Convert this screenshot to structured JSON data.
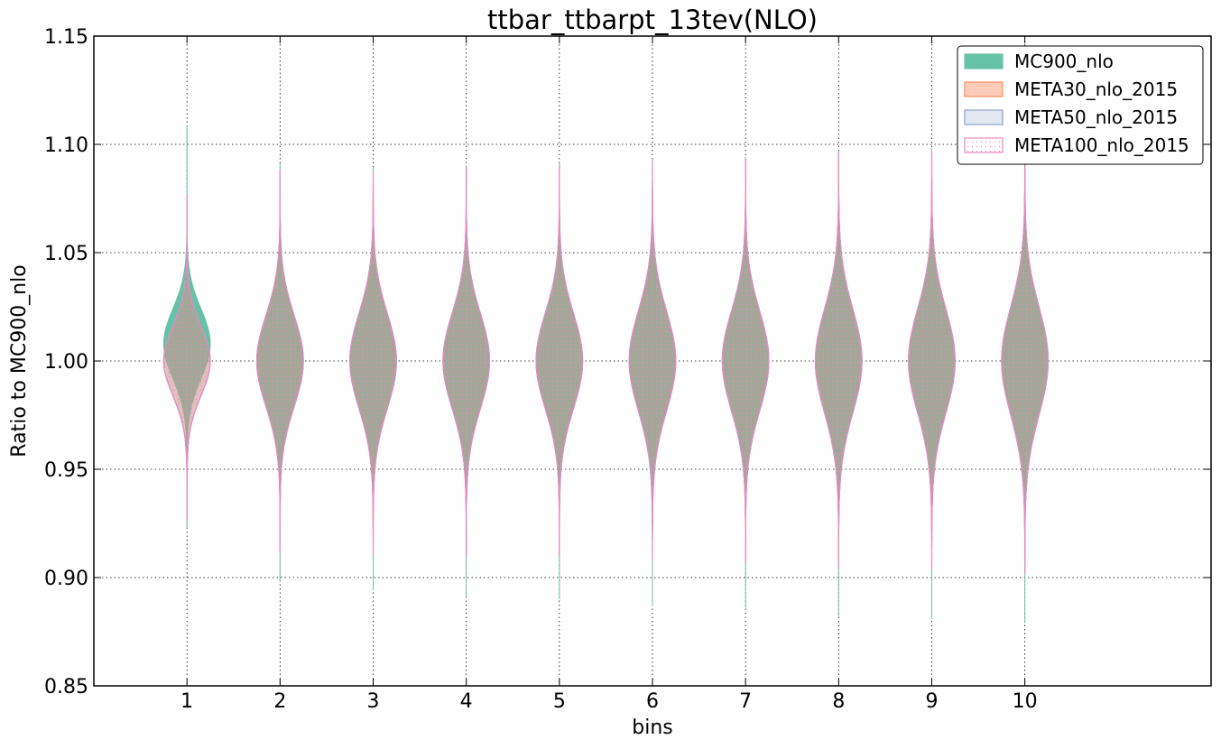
{
  "chart_data": {
    "type": "violin",
    "title": "ttbar_ttbarpt_13tev(NLO)",
    "xlabel": "bins",
    "ylabel": "Ratio to MC900_nlo",
    "xlim": [
      0,
      12
    ],
    "ylim": [
      0.85,
      1.15
    ],
    "x_ticks": [
      1,
      2,
      3,
      4,
      5,
      6,
      7,
      8,
      9,
      10
    ],
    "x_tick_labels": [
      "1",
      "2",
      "3",
      "4",
      "5",
      "6",
      "7",
      "8",
      "9",
      "10"
    ],
    "y_ticks": [
      0.85,
      0.9,
      0.95,
      1.0,
      1.05,
      1.1,
      1.15
    ],
    "y_tick_labels": [
      "0.85",
      "0.90",
      "0.95",
      "1.00",
      "1.05",
      "1.10",
      "1.15"
    ],
    "grid": true,
    "legend_position": "top-right",
    "series": [
      {
        "name": "MC900_nlo",
        "color": "#66c2a5",
        "fill_opacity": 1.0,
        "max_half_width": 0.25,
        "center": [
          1.008,
          1.0,
          1.0,
          1.0,
          1.0,
          1.0,
          1.0,
          1.0,
          1.0,
          1.0
        ],
        "sigma": [
          0.016,
          0.021,
          0.022,
          0.022,
          0.022,
          0.023,
          0.023,
          0.024,
          0.024,
          0.025
        ],
        "min": [
          0.923,
          0.898,
          0.894,
          0.891,
          0.89,
          0.887,
          0.886,
          0.882,
          0.881,
          0.879
        ],
        "max": [
          1.109,
          1.091,
          1.089,
          1.09,
          1.091,
          1.093,
          1.094,
          1.097,
          1.098,
          1.099
        ]
      },
      {
        "name": "META30_nlo_2015",
        "color": "#fc8d62",
        "fill_opacity": 0.45,
        "max_half_width": 0.25,
        "center": [
          1.0,
          1.0,
          1.0,
          1.0,
          1.0,
          1.0,
          1.0,
          1.0,
          1.0,
          1.0
        ],
        "sigma": [
          0.016,
          0.021,
          0.022,
          0.022,
          0.022,
          0.023,
          0.023,
          0.024,
          0.024,
          0.025
        ],
        "min": [
          0.926,
          0.912,
          0.911,
          0.91,
          0.91,
          0.908,
          0.907,
          0.905,
          0.904,
          0.902
        ],
        "max": [
          1.077,
          1.088,
          1.087,
          1.089,
          1.09,
          1.092,
          1.093,
          1.096,
          1.097,
          1.098
        ]
      },
      {
        "name": "META50_nlo_2015",
        "color": "#8da0cb",
        "fill_opacity": 0.25,
        "max_half_width": 0.25,
        "center": [
          1.0,
          1.0,
          1.0,
          1.0,
          1.0,
          1.0,
          1.0,
          1.0,
          1.0,
          1.0
        ],
        "sigma": [
          0.016,
          0.021,
          0.022,
          0.022,
          0.022,
          0.023,
          0.023,
          0.024,
          0.024,
          0.025
        ],
        "min": [
          0.926,
          0.912,
          0.911,
          0.91,
          0.91,
          0.908,
          0.907,
          0.905,
          0.904,
          0.902
        ],
        "max": [
          1.077,
          1.088,
          1.087,
          1.089,
          1.09,
          1.092,
          1.093,
          1.096,
          1.097,
          1.098
        ]
      },
      {
        "name": "META100_nlo_2015",
        "color": "#e78ac3",
        "fill_opacity": 0.0,
        "max_half_width": 0.25,
        "center": [
          1.0,
          1.0,
          1.0,
          1.0,
          1.0,
          1.0,
          1.0,
          1.0,
          1.0,
          1.0
        ],
        "sigma": [
          0.016,
          0.021,
          0.022,
          0.022,
          0.022,
          0.023,
          0.023,
          0.024,
          0.024,
          0.025
        ],
        "min": [
          0.926,
          0.912,
          0.911,
          0.91,
          0.91,
          0.908,
          0.907,
          0.905,
          0.904,
          0.902
        ],
        "max": [
          1.077,
          1.088,
          1.087,
          1.089,
          1.09,
          1.092,
          1.093,
          1.096,
          1.097,
          1.098
        ]
      }
    ]
  }
}
